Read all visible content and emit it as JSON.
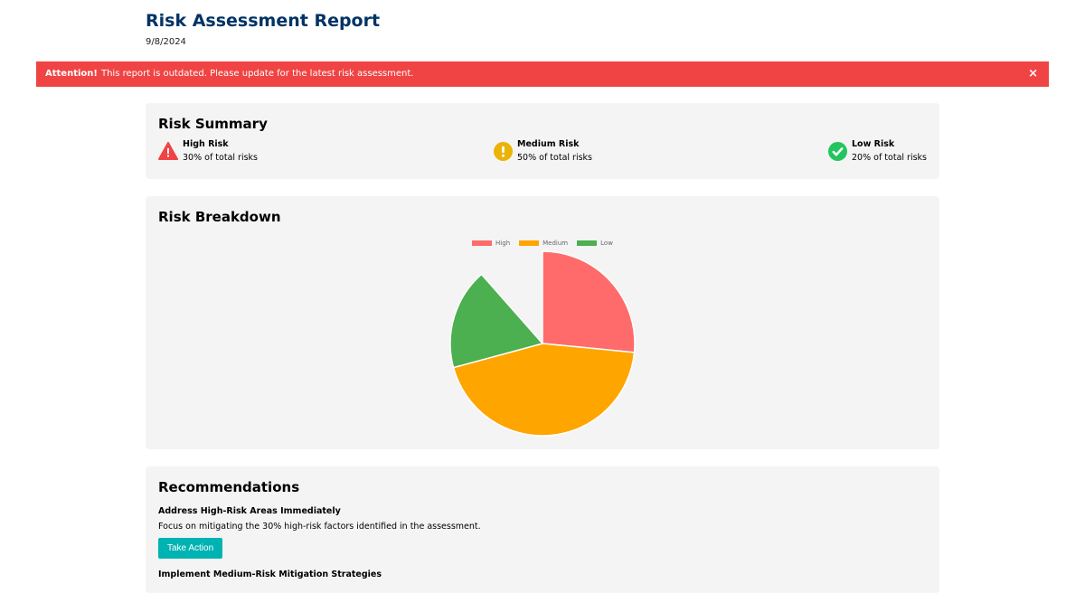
{
  "header": {
    "title": "Risk Assessment Report",
    "date": "9/8/2024"
  },
  "banner": {
    "strong": "Attention!",
    "message": "This report is outdated. Please update for the latest risk assessment.",
    "close": "×",
    "color": "#f04444"
  },
  "summary": {
    "title": "Risk Summary",
    "items": [
      {
        "label": "High Risk",
        "detail": "30% of total risks",
        "icon": "warning-triangle-icon",
        "color": "#f04444"
      },
      {
        "label": "Medium Risk",
        "detail": "50% of total risks",
        "icon": "exclamation-circle-icon",
        "color": "#eab308"
      },
      {
        "label": "Low Risk",
        "detail": "20% of total risks",
        "icon": "check-circle-icon",
        "color": "#22c55e"
      }
    ]
  },
  "breakdown": {
    "title": "Risk Breakdown"
  },
  "chart_data": {
    "type": "pie",
    "categories": [
      "High",
      "Medium",
      "Low"
    ],
    "values": [
      30,
      50,
      20
    ],
    "colors": [
      "#ff6b6b",
      "#ffa500",
      "#4caf50"
    ],
    "legend": "top"
  },
  "recommendations": {
    "title": "Recommendations",
    "items": [
      {
        "heading": "Address High-Risk Areas Immediately",
        "text": "Focus on mitigating the 30% high-risk factors identified in the assessment.",
        "button": "Take Action"
      },
      {
        "heading": "Implement Medium-Risk Mitigation Strategies"
      }
    ]
  }
}
